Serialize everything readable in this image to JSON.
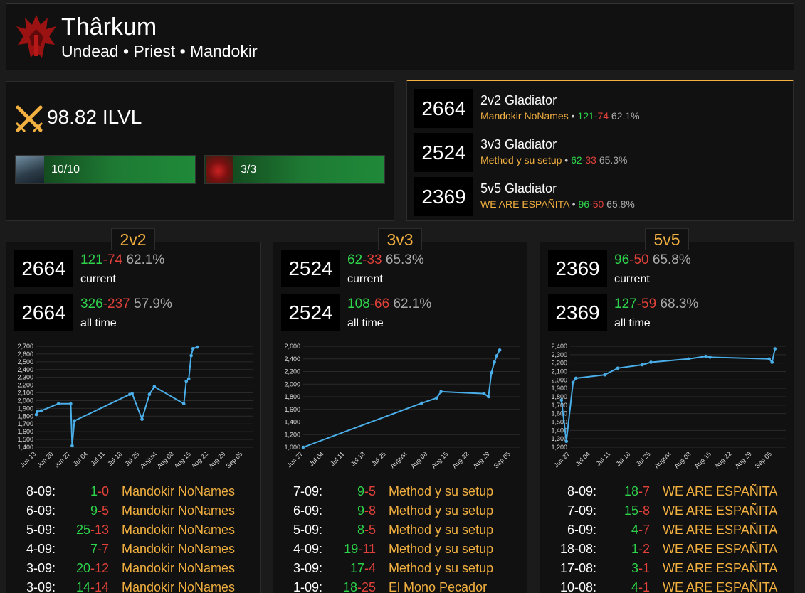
{
  "character": {
    "name": "Thârkum",
    "subtitle": "Undead • Priest • Mandokir",
    "faction_icon": "horde-crest-icon",
    "accent": "#f2b040"
  },
  "gear": {
    "ilvl": "98.82 ILVL",
    "raids": [
      {
        "progress": "10/10"
      },
      {
        "progress": "3/3"
      }
    ]
  },
  "ratings": [
    {
      "rating": "2664",
      "title": "2v2 Gladiator",
      "team": "Mandokir NoNames",
      "wins": "121",
      "losses": "74",
      "pct": "62.1%"
    },
    {
      "rating": "2524",
      "title": "3v3 Gladiator",
      "team": "Method y su setup",
      "wins": "62",
      "losses": "33",
      "pct": "65.3%"
    },
    {
      "rating": "2369",
      "title": "5v5 Gladiator",
      "team": "WE ARE ESPAÑITA",
      "wins": "96",
      "losses": "50",
      "pct": "65.8%"
    }
  ],
  "brackets": [
    {
      "tab": "2v2",
      "current": {
        "rating": "2664",
        "wins": "121",
        "losses": "74",
        "pct": "62.1%",
        "label": "current"
      },
      "alltime": {
        "rating": "2664",
        "wins": "326",
        "losses": "237",
        "pct": "57.9%",
        "label": "all time"
      },
      "history": [
        {
          "date": "8-09:",
          "wins": "1",
          "losses": "0",
          "team": "Mandokir NoNames"
        },
        {
          "date": "6-09:",
          "wins": "9",
          "losses": "5",
          "team": "Mandokir NoNames"
        },
        {
          "date": "5-09:",
          "wins": "25",
          "losses": "13",
          "team": "Mandokir NoNames"
        },
        {
          "date": "4-09:",
          "wins": "7",
          "losses": "7",
          "team": "Mandokir NoNames"
        },
        {
          "date": "3-09:",
          "wins": "20",
          "losses": "12",
          "team": "Mandokir NoNames"
        },
        {
          "date": "3-09:",
          "wins": "14",
          "losses": "14",
          "team": "Mandokir NoNames"
        }
      ]
    },
    {
      "tab": "3v3",
      "current": {
        "rating": "2524",
        "wins": "62",
        "losses": "33",
        "pct": "65.3%",
        "label": "current"
      },
      "alltime": {
        "rating": "2524",
        "wins": "108",
        "losses": "66",
        "pct": "62.1%",
        "label": "all time"
      },
      "history": [
        {
          "date": "7-09:",
          "wins": "9",
          "losses": "5",
          "team": "Method y su setup"
        },
        {
          "date": "6-09:",
          "wins": "9",
          "losses": "8",
          "team": "Method y su setup"
        },
        {
          "date": "5-09:",
          "wins": "8",
          "losses": "5",
          "team": "Method y su setup"
        },
        {
          "date": "4-09:",
          "wins": "19",
          "losses": "11",
          "team": "Method y su setup"
        },
        {
          "date": "3-09:",
          "wins": "17",
          "losses": "4",
          "team": "Method y su setup"
        },
        {
          "date": "1-09:",
          "wins": "18",
          "losses": "25",
          "team": "El Mono Pecador"
        }
      ]
    },
    {
      "tab": "5v5",
      "current": {
        "rating": "2369",
        "wins": "96",
        "losses": "50",
        "pct": "65.8%",
        "label": "current"
      },
      "alltime": {
        "rating": "2369",
        "wins": "127",
        "losses": "59",
        "pct": "68.3%",
        "label": "all time"
      },
      "history": [
        {
          "date": "8-09:",
          "wins": "18",
          "losses": "7",
          "team": "WE ARE ESPAÑITA"
        },
        {
          "date": "7-09:",
          "wins": "15",
          "losses": "8",
          "team": "WE ARE ESPAÑITA"
        },
        {
          "date": "6-09:",
          "wins": "4",
          "losses": "7",
          "team": "WE ARE ESPAÑITA"
        },
        {
          "date": "18-08:",
          "wins": "1",
          "losses": "2",
          "team": "WE ARE ESPAÑITA"
        },
        {
          "date": "17-08:",
          "wins": "3",
          "losses": "1",
          "team": "WE ARE ESPAÑITA"
        },
        {
          "date": "10-08:",
          "wins": "4",
          "losses": "1",
          "team": "WE ARE ESPAÑITA"
        }
      ]
    }
  ],
  "chart_data": [
    {
      "type": "line",
      "line_color": "#4aaee8",
      "ylim": [
        1400,
        2700
      ],
      "yticks": [
        1400,
        1500,
        1600,
        1700,
        1800,
        1900,
        2000,
        2100,
        2200,
        2300,
        2400,
        2500,
        2600,
        2700
      ],
      "ytick_labels": [
        "1,400",
        "1,500",
        "1,600",
        "1,700",
        "1,800",
        "1,900",
        "2,000",
        "2,100",
        "2,200",
        "2,300",
        "2,400",
        "2,500",
        "2,600",
        "2,700"
      ],
      "xlim": [
        0,
        88
      ],
      "xticks": [
        0,
        7,
        14,
        21,
        28,
        35,
        42,
        49,
        56,
        63,
        70,
        77,
        84
      ],
      "xtick_labels": [
        "Jun 13",
        "Jun 20",
        "Jun 27",
        "Jul 04",
        "Jul 11",
        "Jul 18",
        "Jul 25",
        "August",
        "Aug 08",
        "Aug 15",
        "Aug 22",
        "Aug 29",
        "Sep 05"
      ],
      "points": [
        [
          0,
          1820
        ],
        [
          0.5,
          1860
        ],
        [
          2,
          1870
        ],
        [
          9,
          1960
        ],
        [
          14,
          1960
        ],
        [
          14.6,
          1420
        ],
        [
          15.5,
          1740
        ],
        [
          38,
          2080
        ],
        [
          39,
          2090
        ],
        [
          43,
          1760
        ],
        [
          46,
          2080
        ],
        [
          48,
          2180
        ],
        [
          60,
          1960
        ],
        [
          61,
          2250
        ],
        [
          62,
          2280
        ],
        [
          63,
          2580
        ],
        [
          63.7,
          2670
        ],
        [
          65.5,
          2690
        ]
      ]
    },
    {
      "type": "line",
      "line_color": "#4aaee8",
      "ylim": [
        1000,
        2600
      ],
      "yticks": [
        1000,
        1200,
        1400,
        1600,
        1800,
        2000,
        2200,
        2400,
        2600
      ],
      "ytick_labels": [
        "1,000",
        "1,200",
        "1,400",
        "1,600",
        "1,800",
        "2,000",
        "2,200",
        "2,400",
        "2,600"
      ],
      "xlim": [
        0,
        73
      ],
      "xticks": [
        0,
        7,
        14,
        21,
        28,
        35,
        42,
        49,
        56,
        63,
        70
      ],
      "xtick_labels": [
        "Jun 27",
        "Jul 04",
        "Jul 11",
        "Jul 18",
        "Jul 25",
        "August",
        "Aug 08",
        "Aug 15",
        "Aug 22",
        "Aug 29",
        "Sep 05"
      ],
      "points": [
        [
          0,
          1000
        ],
        [
          40,
          1700
        ],
        [
          45,
          1780
        ],
        [
          46.5,
          1880
        ],
        [
          61,
          1850
        ],
        [
          62.5,
          1800
        ],
        [
          63.5,
          2180
        ],
        [
          64.5,
          2350
        ],
        [
          65.3,
          2450
        ],
        [
          66.3,
          2540
        ]
      ]
    },
    {
      "type": "line",
      "line_color": "#4aaee8",
      "ylim": [
        1200,
        2400
      ],
      "yticks": [
        1200,
        1300,
        1400,
        1500,
        1600,
        1700,
        1800,
        1900,
        2000,
        2100,
        2200,
        2300,
        2400
      ],
      "ytick_labels": [
        "1,200",
        "1,300",
        "1,400",
        "1,500",
        "1,600",
        "1,700",
        "1,800",
        "1,900",
        "2,000",
        "2,100",
        "2,200",
        "2,300",
        "2,400"
      ],
      "xlim": [
        0,
        75
      ],
      "xticks": [
        0,
        7,
        14,
        21,
        28,
        35,
        42,
        49,
        56,
        63,
        70
      ],
      "xtick_labels": [
        "Jun 27",
        "Jul 04",
        "Jul 11",
        "Jul 18",
        "Jul 25",
        "August",
        "Aug 08",
        "Aug 15",
        "Aug 22",
        "Aug 29",
        "Sep 05"
      ],
      "points": [
        [
          -3,
          1760
        ],
        [
          -1.3,
          1270
        ],
        [
          1,
          1970
        ],
        [
          2,
          2020
        ],
        [
          12,
          2060
        ],
        [
          16.5,
          2140
        ],
        [
          25,
          2180
        ],
        [
          28,
          2210
        ],
        [
          41,
          2250
        ],
        [
          47,
          2280
        ],
        [
          48.5,
          2270
        ],
        [
          69,
          2250
        ],
        [
          70,
          2210
        ],
        [
          71,
          2370
        ]
      ]
    }
  ]
}
